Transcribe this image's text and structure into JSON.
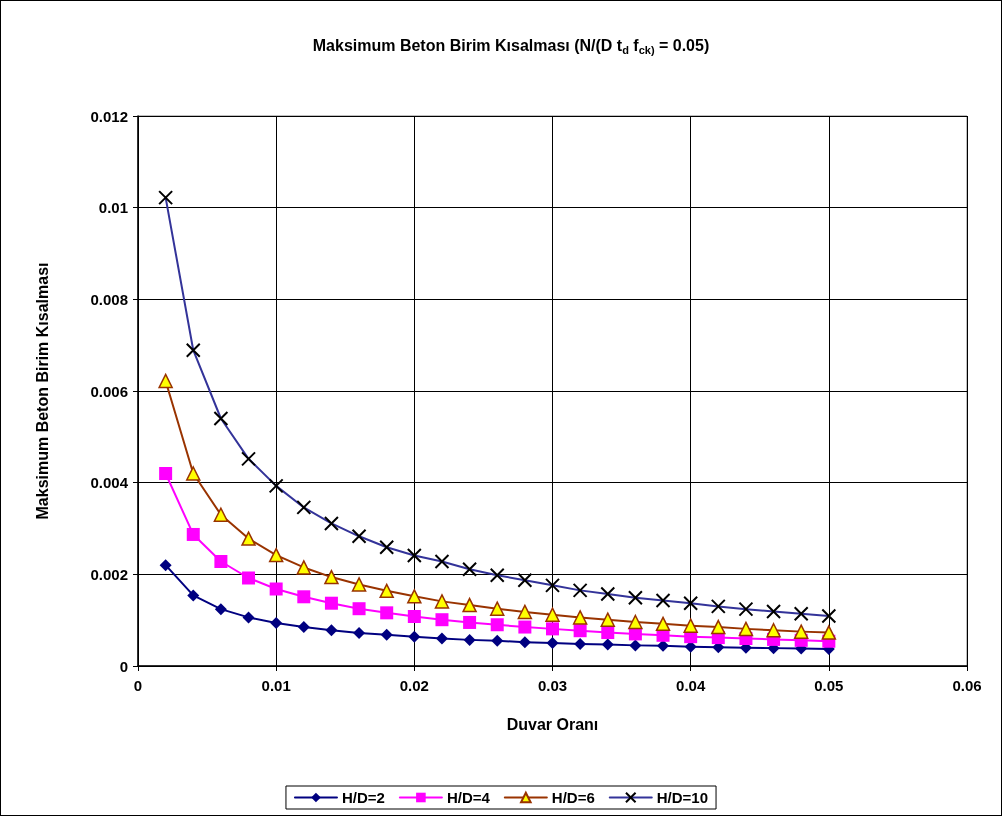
{
  "chart_data": {
    "type": "line",
    "title": "Maksimum Beton Birim Kısalması (N/(D t$_{d}$ f$_{ck)}$ = 0.05)",
    "xlabel": "Duvar Oranı",
    "ylabel": "Maksimum Beton Birim Kısalması",
    "x": [
      0.002,
      0.004,
      0.006,
      0.008,
      0.01,
      0.012,
      0.014,
      0.016,
      0.018,
      0.02,
      0.022,
      0.024,
      0.026,
      0.028,
      0.03,
      0.032,
      0.034,
      0.036,
      0.038,
      0.04,
      0.042,
      0.044,
      0.046,
      0.048,
      0.05
    ],
    "series": [
      {
        "name": "H/D=2",
        "color": "#000080",
        "marker": "diamond",
        "values": [
          0.0022,
          0.00154,
          0.00124,
          0.00106,
          0.00094,
          0.00085,
          0.00078,
          0.00072,
          0.00068,
          0.00064,
          0.0006,
          0.00057,
          0.00055,
          0.00052,
          0.0005,
          0.00048,
          0.00047,
          0.00045,
          0.00044,
          0.00042,
          0.00041,
          0.0004,
          0.00039,
          0.00038,
          0.00037
        ]
      },
      {
        "name": "H/D=4",
        "color": "#ff00ff",
        "marker": "square",
        "values": [
          0.0042,
          0.00287,
          0.00228,
          0.00192,
          0.00168,
          0.00151,
          0.00137,
          0.00125,
          0.00116,
          0.00108,
          0.00101,
          0.00095,
          0.0009,
          0.00085,
          0.00081,
          0.00077,
          0.00073,
          0.0007,
          0.00067,
          0.00064,
          0.00062,
          0.0006,
          0.00058,
          0.00056,
          0.00054
        ]
      },
      {
        "name": "H/D=6",
        "color": "#993300",
        "marker": "triangle",
        "values": [
          0.00622,
          0.0042,
          0.0033,
          0.00278,
          0.00242,
          0.00215,
          0.00194,
          0.00178,
          0.00164,
          0.00152,
          0.00141,
          0.00133,
          0.00125,
          0.00118,
          0.00112,
          0.00106,
          0.00101,
          0.00096,
          0.00092,
          0.00088,
          0.00085,
          0.00081,
          0.00078,
          0.00075,
          0.00073
        ]
      },
      {
        "name": "H/D=10",
        "color": "#333399",
        "marker": "cross",
        "values": [
          0.01022,
          0.00689,
          0.0054,
          0.00452,
          0.00393,
          0.00346,
          0.00311,
          0.00283,
          0.00259,
          0.00241,
          0.00228,
          0.00211,
          0.00198,
          0.00187,
          0.00176,
          0.00165,
          0.00157,
          0.00149,
          0.00143,
          0.00137,
          0.0013,
          0.00124,
          0.00119,
          0.00114,
          0.00109
        ]
      }
    ],
    "xlim": [
      0,
      0.06
    ],
    "xticks": [
      0,
      0.01,
      0.02,
      0.03,
      0.04,
      0.05,
      0.06
    ],
    "ylim": [
      0,
      0.012
    ],
    "yticks": [
      0,
      0.002,
      0.004,
      0.006,
      0.008,
      0.01,
      0.012
    ],
    "grid": true,
    "legend": "bottom",
    "line_style": "solid"
  }
}
